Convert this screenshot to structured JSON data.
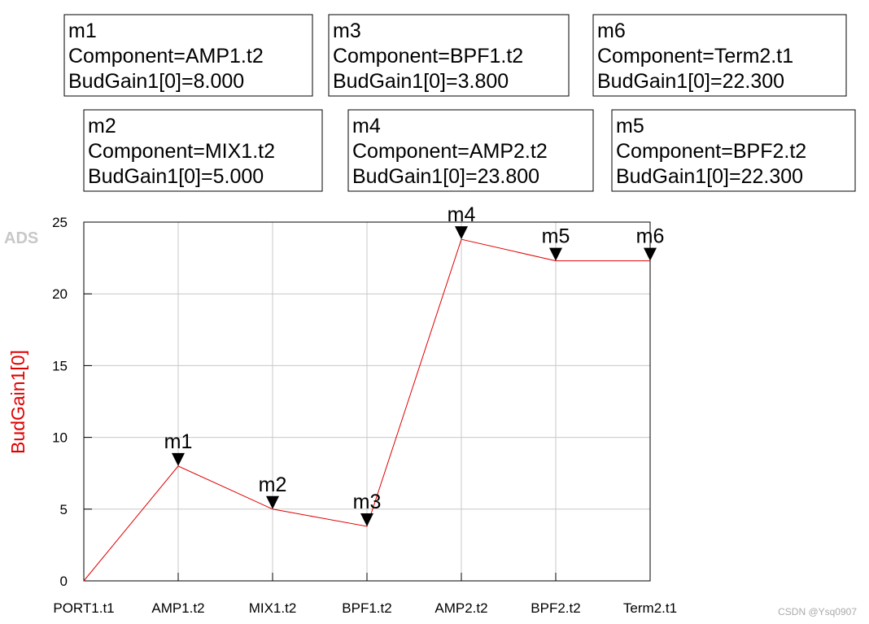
{
  "chart_data": {
    "type": "line",
    "logo": "ADS",
    "watermark": "CSDN @Ysq0907",
    "y_label": "BudGain1[0]",
    "categories": [
      "PORT1.t1",
      "AMP1.t2",
      "MIX1.t2",
      "BPF1.t2",
      "AMP2.t2",
      "BPF2.t2",
      "Term2.t1"
    ],
    "series": [
      {
        "name": "BudGain1[0]",
        "color": "#e00000",
        "values": [
          0,
          8,
          5,
          3.8,
          23.8,
          22.3,
          22.3
        ]
      }
    ],
    "marker_names": [
      null,
      "m1",
      "m2",
      "m3",
      "m4",
      "m5",
      "m6"
    ],
    "markers": [
      {
        "name": "m1",
        "component": "Component=AMP1.t2",
        "reading": "BudGain1[0]=8.000"
      },
      {
        "name": "m3",
        "component": "Component=BPF1.t2",
        "reading": "BudGain1[0]=3.800"
      },
      {
        "name": "m6",
        "component": "Component=Term2.t1",
        "reading": "BudGain1[0]=22.300"
      },
      {
        "name": "m2",
        "component": "Component=MIX1.t2",
        "reading": "BudGain1[0]=5.000"
      },
      {
        "name": "m4",
        "component": "Component=AMP2.t2",
        "reading": "BudGain1[0]=23.800"
      },
      {
        "name": "m5",
        "component": "Component=BPF2.t2",
        "reading": "BudGain1[0]=22.300"
      }
    ],
    "ylim": [
      0,
      25
    ],
    "yticks": [
      0,
      5,
      10,
      15,
      20,
      25
    ],
    "grid": true
  }
}
